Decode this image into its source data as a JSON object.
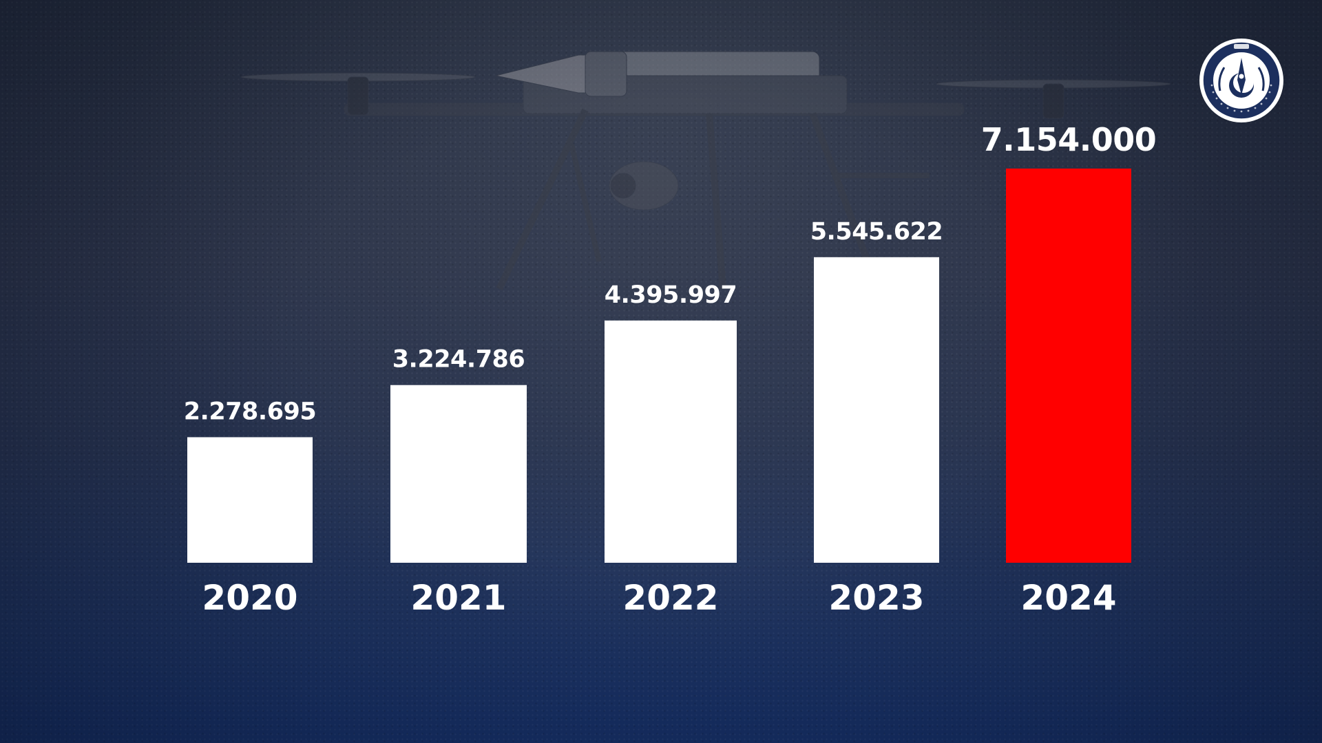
{
  "logo": {
    "abbr": "SSB",
    "organization": "SAVUNMA SANAYİİ BAŞKANLIĞI",
    "icon": "ssb-emblem-icon"
  },
  "colors": {
    "default_bar": "#ffffff",
    "highlight_bar": "#ff0000",
    "label": "#ffffff"
  },
  "chart_data": {
    "type": "bar",
    "categories": [
      "2020",
      "2021",
      "2022",
      "2023",
      "2024"
    ],
    "values": [
      2278695,
      3224786,
      4395997,
      5545622,
      7154000
    ],
    "value_labels": [
      "2.278.695",
      "3.224.786",
      "4.395.997",
      "5.545.622",
      "7.154.000"
    ],
    "highlight_index": 4,
    "title": "",
    "xlabel": "",
    "ylabel": "",
    "ylim": [
      0,
      7500000
    ],
    "grid": false,
    "legend": "none",
    "axes_visible": false
  }
}
